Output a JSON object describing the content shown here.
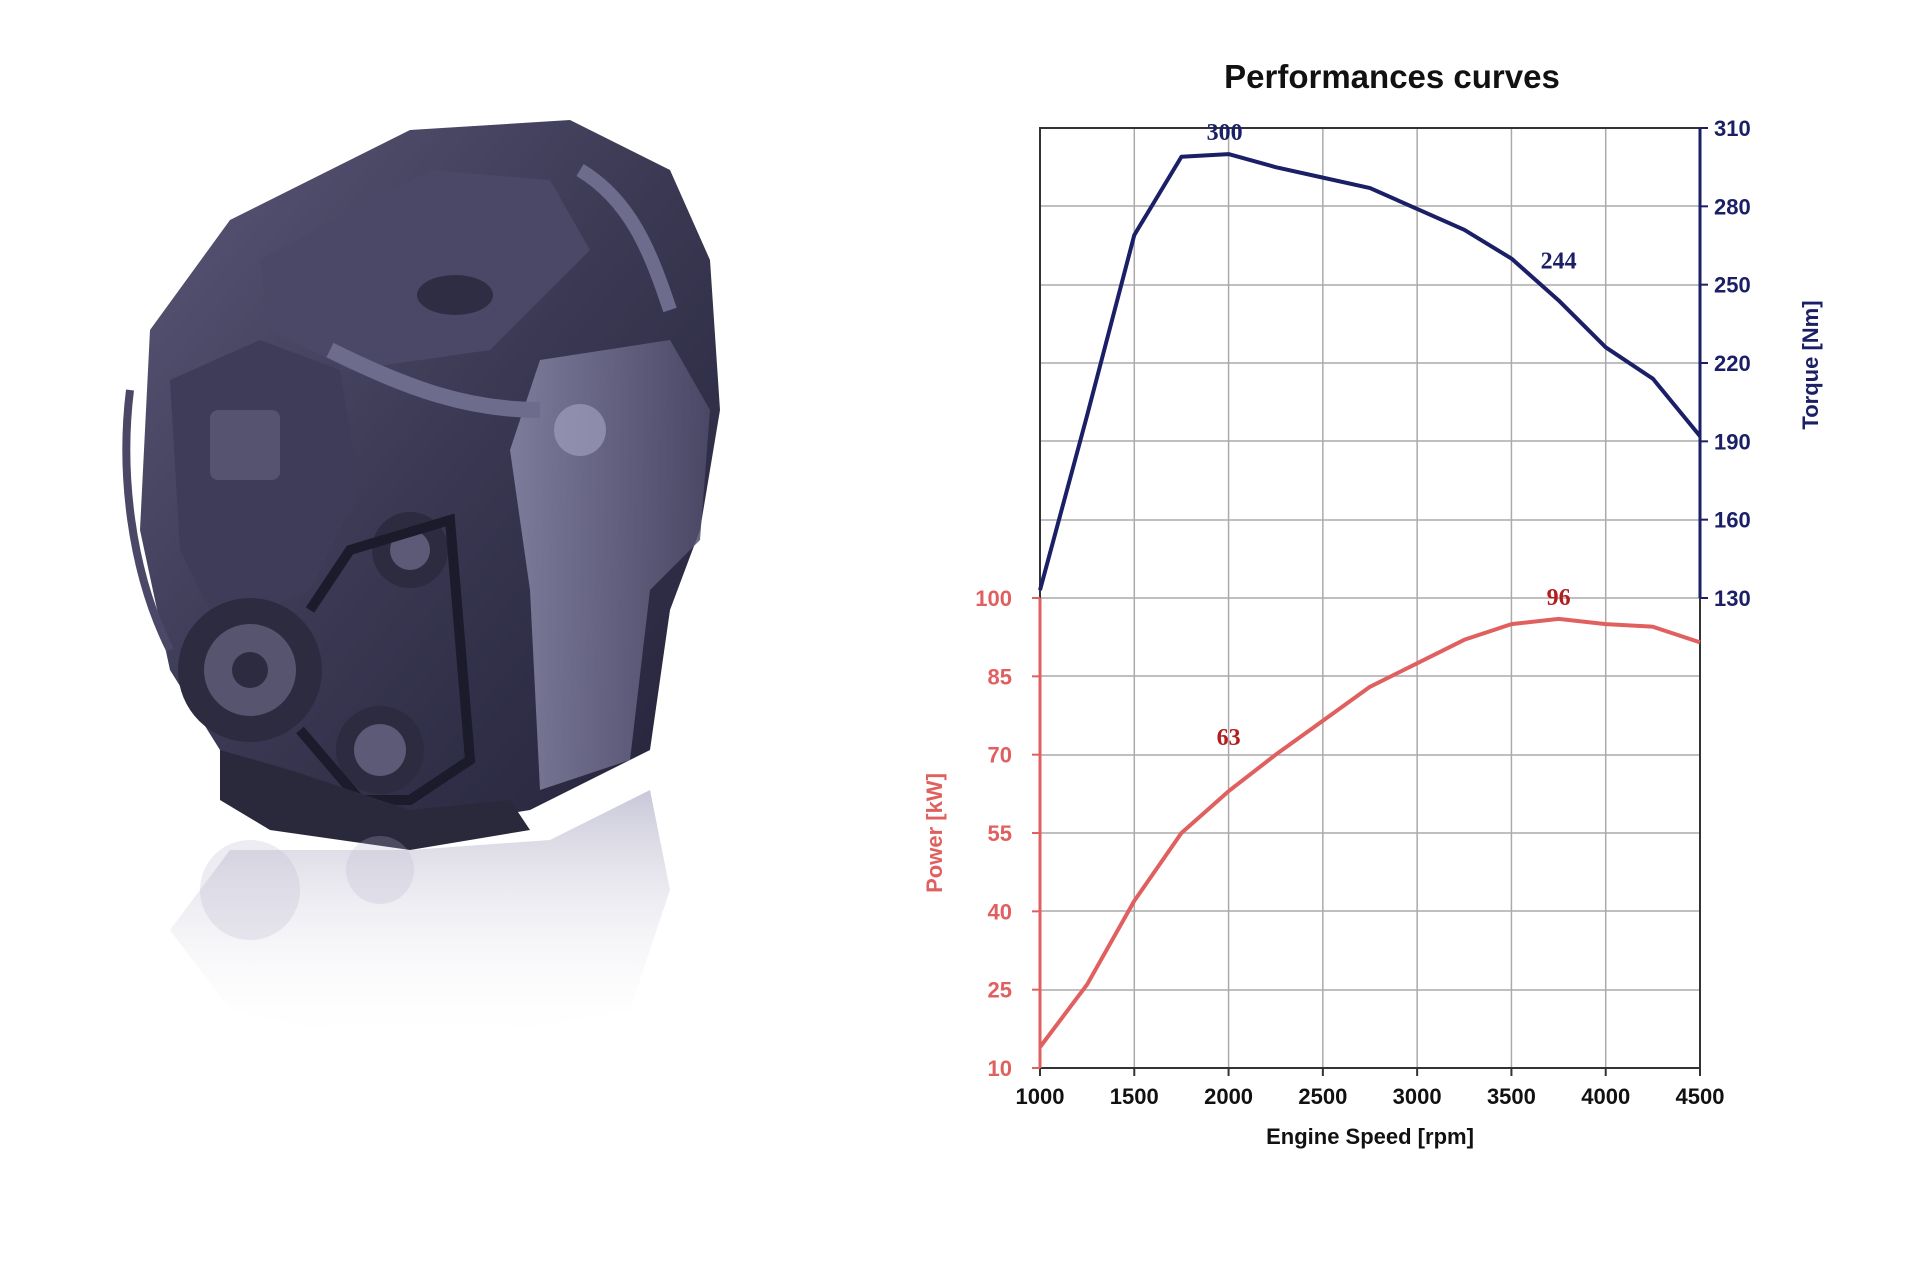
{
  "colors": {
    "power": "#e06060",
    "power_annot": "#b21e1e",
    "torque": "#1a1f66",
    "grid": "#aaaaaa",
    "frame": "#333333"
  },
  "image": {
    "icon": "diesel-engine-illustration"
  },
  "chart_data": {
    "type": "line",
    "title": "Performances curves",
    "xlabel": "Engine Speed [rpm]",
    "xlim": [
      1000,
      4500
    ],
    "x_ticks": [
      1000,
      1500,
      2000,
      2500,
      3000,
      3500,
      4000,
      4500
    ],
    "grid": true,
    "power_axis": {
      "label": "Power [kW]",
      "ticks": [
        10,
        25,
        40,
        55,
        70,
        85,
        100
      ],
      "range": [
        10,
        100
      ],
      "side": "left"
    },
    "torque_axis": {
      "label": "Torque [Nm]",
      "ticks": [
        130,
        160,
        190,
        220,
        250,
        280,
        310
      ],
      "range": [
        130,
        310
      ],
      "side": "right"
    },
    "series": [
      {
        "name": "Power",
        "axis": "power",
        "x": [
          1000,
          1250,
          1500,
          1750,
          2000,
          2250,
          2500,
          2750,
          3000,
          3250,
          3500,
          3750,
          4000,
          4250,
          4500
        ],
        "y": [
          14,
          26,
          42,
          55,
          63,
          70,
          76.5,
          83,
          87.5,
          92,
          95,
          96,
          95,
          94.5,
          91.5
        ]
      },
      {
        "name": "Torque",
        "axis": "torque",
        "x": [
          1000,
          1250,
          1500,
          1750,
          2000,
          2250,
          2500,
          2750,
          3000,
          3250,
          3500,
          3750,
          4000,
          4250,
          4500
        ],
        "y": [
          133,
          200,
          269,
          299,
          300,
          295,
          291,
          287,
          279,
          271,
          260,
          244,
          226,
          214,
          192
        ]
      }
    ],
    "annotations": [
      {
        "text": "300",
        "series": "Torque",
        "x": 2000,
        "y": 300
      },
      {
        "text": "244",
        "series": "Torque",
        "x": 3750,
        "y": 244
      },
      {
        "text": "96",
        "series": "Power",
        "x": 3750,
        "y": 96
      },
      {
        "text": "63",
        "series": "Power",
        "x": 2000,
        "y": 63
      }
    ]
  }
}
